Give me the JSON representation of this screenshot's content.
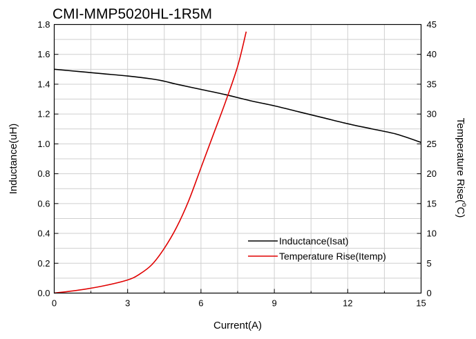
{
  "chart_data": {
    "type": "line",
    "title": "CMI-MMP5020HL-1R5M",
    "xlabel": "Current(A)",
    "ylabel_left": "Inductance(uH)",
    "ylabel_right_prefix": "Temperature Rise(",
    "ylabel_right_unit_sup": "o",
    "ylabel_right_suffix": "C)",
    "xlim": [
      0,
      15
    ],
    "ylim_left": [
      0,
      1.8
    ],
    "ylim_right": [
      0,
      45
    ],
    "x_ticks": [
      "0",
      "3",
      "6",
      "9",
      "12",
      "15"
    ],
    "y_left_ticks": [
      "0.0",
      "0.2",
      "0.4",
      "0.6",
      "0.8",
      "1.0",
      "1.2",
      "1.4",
      "1.6",
      "1.8"
    ],
    "y_right_ticks": [
      "0",
      "5",
      "10",
      "15",
      "20",
      "25",
      "30",
      "35",
      "40",
      "45"
    ],
    "grid": true,
    "legend_position": "bottom-right",
    "series": [
      {
        "name": "Inductance(Isat)",
        "axis": "left",
        "color": "#000000",
        "points": [
          [
            0,
            1.5
          ],
          [
            1,
            1.485
          ],
          [
            2,
            1.47
          ],
          [
            3,
            1.455
          ],
          [
            4,
            1.435
          ],
          [
            4.5,
            1.42
          ],
          [
            5,
            1.4
          ],
          [
            6,
            1.365
          ],
          [
            7,
            1.33
          ],
          [
            8,
            1.29
          ],
          [
            9,
            1.255
          ],
          [
            10,
            1.215
          ],
          [
            11,
            1.175
          ],
          [
            12,
            1.135
          ],
          [
            13,
            1.1
          ],
          [
            14,
            1.065
          ],
          [
            15,
            1.01
          ]
        ]
      },
      {
        "name": "Temperature Rise(Itemp)",
        "axis": "right",
        "color": "#e00000",
        "points": [
          [
            0,
            0
          ],
          [
            1,
            0.5
          ],
          [
            2,
            1.2
          ],
          [
            3,
            2.2
          ],
          [
            3.5,
            3.2
          ],
          [
            4,
            4.8
          ],
          [
            4.5,
            7.5
          ],
          [
            5,
            11
          ],
          [
            5.5,
            15.5
          ],
          [
            6,
            21
          ],
          [
            6.5,
            26.5
          ],
          [
            7,
            32
          ],
          [
            7.5,
            38
          ],
          [
            7.85,
            43.8
          ]
        ]
      }
    ]
  }
}
